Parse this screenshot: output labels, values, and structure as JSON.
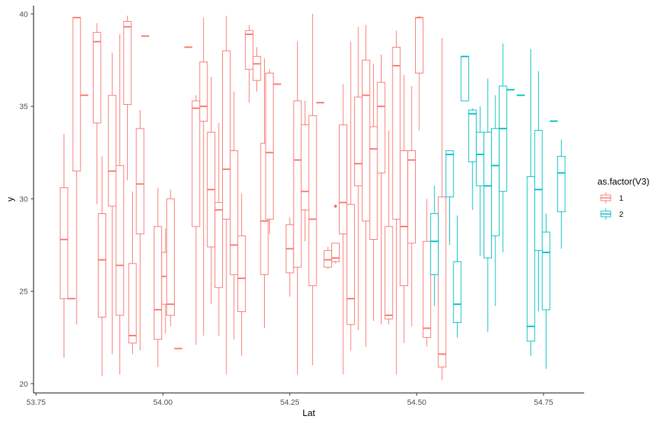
{
  "chart_data": {
    "type": "boxplot",
    "xlabel": "Lat",
    "ylabel": "y",
    "xlim": [
      53.745,
      54.83
    ],
    "ylim": [
      19.5,
      40.45
    ],
    "x_ticks": [
      53.75,
      54.0,
      54.25,
      54.5,
      54.75
    ],
    "x_tick_labels": [
      "53.75",
      "54.00",
      "54.25",
      "54.50",
      "54.75"
    ],
    "y_ticks": [
      20,
      25,
      30,
      35,
      40
    ],
    "y_tick_labels": [
      "20",
      "25",
      "30",
      "35",
      "40"
    ],
    "box_width": 0.015,
    "grid": false,
    "legend": {
      "title": "as.factor(V3)",
      "position": "right",
      "entries": [
        {
          "label": "1",
          "color": "#F8766D"
        },
        {
          "label": "2",
          "color": "#00BFC4"
        }
      ]
    },
    "series": [
      {
        "name": "1",
        "color": "#F8766D",
        "boxes": [
          {
            "x": 53.805,
            "min": 21.4,
            "q1": 24.6,
            "median": 27.8,
            "q3": 30.6,
            "max": 33.5
          },
          {
            "x": 53.82,
            "min": 24.6,
            "q1": 24.6,
            "median": 24.6,
            "q3": 24.6,
            "max": 24.6
          },
          {
            "x": 53.83,
            "min": 23.2,
            "q1": 31.5,
            "median": 39.8,
            "q3": 39.8,
            "max": 39.8
          },
          {
            "x": 53.845,
            "min": 35.6,
            "q1": 35.6,
            "median": 35.6,
            "q3": 35.6,
            "max": 35.6
          },
          {
            "x": 53.87,
            "min": 29.7,
            "q1": 34.1,
            "median": 38.5,
            "q3": 39.0,
            "max": 39.5
          },
          {
            "x": 53.88,
            "min": 20.4,
            "q1": 23.6,
            "median": 26.7,
            "q3": 29.2,
            "max": 32.3
          },
          {
            "x": 53.9,
            "min": 21.6,
            "q1": 29.6,
            "median": 31.5,
            "q3": 35.6,
            "max": 37.9
          },
          {
            "x": 53.915,
            "min": 20.5,
            "q1": 23.7,
            "median": 26.4,
            "q3": 31.8,
            "max": 38.9
          },
          {
            "x": 53.93,
            "min": 31.0,
            "q1": 35.1,
            "median": 39.3,
            "q3": 39.6,
            "max": 39.9
          },
          {
            "x": 53.94,
            "min": 21.6,
            "q1": 22.2,
            "median": 22.6,
            "q3": 26.5,
            "max": 30.4
          },
          {
            "x": 53.955,
            "min": 21.8,
            "q1": 28.1,
            "median": 30.8,
            "q3": 33.8,
            "max": 34.8
          },
          {
            "x": 53.965,
            "min": 38.8,
            "q1": 38.8,
            "median": 38.8,
            "q3": 38.8,
            "max": 38.8
          },
          {
            "x": 53.99,
            "min": 20.9,
            "q1": 22.4,
            "median": 24.0,
            "q3": 28.5,
            "max": 30.6
          },
          {
            "x": 54.005,
            "min": 22.7,
            "q1": 24.3,
            "median": 25.8,
            "q3": 27.1,
            "max": 28.4
          },
          {
            "x": 54.015,
            "min": 23.1,
            "q1": 23.7,
            "median": 24.3,
            "q3": 30.0,
            "max": 30.5
          },
          {
            "x": 54.03,
            "min": 21.9,
            "q1": 21.9,
            "median": 21.9,
            "q3": 21.9,
            "max": 21.9
          },
          {
            "x": 54.05,
            "min": 38.2,
            "q1": 38.2,
            "median": 38.2,
            "q3": 38.2,
            "max": 38.2
          },
          {
            "x": 54.065,
            "min": 22.1,
            "q1": 28.5,
            "median": 34.9,
            "q3": 35.3,
            "max": 35.6
          },
          {
            "x": 54.08,
            "min": 22.6,
            "q1": 34.2,
            "median": 35.0,
            "q3": 37.4,
            "max": 39.8
          },
          {
            "x": 54.095,
            "min": 24.3,
            "q1": 27.4,
            "median": 30.5,
            "q3": 33.6,
            "max": 36.6
          },
          {
            "x": 54.11,
            "min": 22.6,
            "q1": 25.2,
            "median": 29.4,
            "q3": 29.8,
            "max": 34.1
          },
          {
            "x": 54.125,
            "min": 20.5,
            "q1": 28.9,
            "median": 31.6,
            "q3": 38.0,
            "max": 39.9
          },
          {
            "x": 54.14,
            "min": 22.4,
            "q1": 25.9,
            "median": 27.5,
            "q3": 32.6,
            "max": 35.8
          },
          {
            "x": 54.155,
            "min": 21.5,
            "q1": 23.9,
            "median": 25.7,
            "q3": 28.0,
            "max": 30.3
          },
          {
            "x": 54.17,
            "min": 35.2,
            "q1": 37.0,
            "median": 38.9,
            "q3": 39.1,
            "max": 39.4
          },
          {
            "x": 54.185,
            "min": 35.8,
            "q1": 36.4,
            "median": 37.3,
            "q3": 37.7,
            "max": 38.2
          },
          {
            "x": 54.2,
            "min": 23.0,
            "q1": 25.9,
            "median": 28.8,
            "q3": 33.0,
            "max": 37.6
          },
          {
            "x": 54.21,
            "min": 28.1,
            "q1": 28.9,
            "median": 32.5,
            "q3": 36.8,
            "max": 37.0
          },
          {
            "x": 54.225,
            "min": 36.2,
            "q1": 36.2,
            "median": 36.2,
            "q3": 36.2,
            "max": 36.2
          },
          {
            "x": 54.25,
            "min": 24.7,
            "q1": 26.0,
            "median": 27.3,
            "q3": 28.6,
            "max": 29.0
          },
          {
            "x": 54.265,
            "min": 20.5,
            "q1": 26.3,
            "median": 32.1,
            "q3": 35.3,
            "max": 38.5
          },
          {
            "x": 54.28,
            "min": 27.7,
            "q1": 29.4,
            "median": 30.4,
            "q3": 34.0,
            "max": 35.3
          },
          {
            "x": 54.295,
            "min": 21.0,
            "q1": 25.3,
            "median": 28.9,
            "q3": 34.5,
            "max": 40.0
          },
          {
            "x": 54.31,
            "min": 35.2,
            "q1": 35.2,
            "median": 35.2,
            "q3": 35.2,
            "max": 35.2
          },
          {
            "x": 54.325,
            "min": 26.2,
            "q1": 26.3,
            "median": 26.7,
            "q3": 27.2,
            "max": 27.4
          },
          {
            "x": 54.34,
            "min": 26.5,
            "q1": 26.6,
            "median": 26.8,
            "q3": 27.6,
            "max": 27.6,
            "outliers": [
              29.6
            ]
          },
          {
            "x": 54.355,
            "min": 20.5,
            "q1": 28.1,
            "median": 29.8,
            "q3": 34.0,
            "max": 36.2
          },
          {
            "x": 54.37,
            "min": 21.8,
            "q1": 23.2,
            "median": 24.6,
            "q3": 29.7,
            "max": 38.5
          },
          {
            "x": 54.385,
            "min": 22.9,
            "q1": 30.7,
            "median": 31.9,
            "q3": 35.5,
            "max": 39.3
          },
          {
            "x": 54.4,
            "min": 22.0,
            "q1": 28.8,
            "median": 35.6,
            "q3": 37.5,
            "max": 39.4
          },
          {
            "x": 54.415,
            "min": 23.4,
            "q1": 27.8,
            "median": 32.7,
            "q3": 33.9,
            "max": 37.3
          },
          {
            "x": 54.43,
            "min": 23.2,
            "q1": 31.4,
            "median": 35.0,
            "q3": 36.3,
            "max": 37.8
          },
          {
            "x": 54.445,
            "min": 23.2,
            "q1": 23.5,
            "median": 23.7,
            "q3": 28.5,
            "max": 33.7
          },
          {
            "x": 54.46,
            "min": 20.5,
            "q1": 28.9,
            "median": 37.2,
            "q3": 38.2,
            "max": 39.1
          },
          {
            "x": 54.475,
            "min": 22.2,
            "q1": 25.3,
            "median": 28.5,
            "q3": 32.6,
            "max": 36.7
          },
          {
            "x": 54.49,
            "min": 23.1,
            "q1": 27.6,
            "median": 32.1,
            "q3": 32.6,
            "max": 36.1
          },
          {
            "x": 54.505,
            "min": 33.7,
            "q1": 36.8,
            "median": 39.8,
            "q3": 39.8,
            "max": 39.9
          },
          {
            "x": 54.52,
            "min": 22.0,
            "q1": 22.5,
            "median": 23.0,
            "q3": 27.7,
            "max": 30.0
          },
          {
            "x": 54.55,
            "min": 20.2,
            "q1": 20.9,
            "median": 21.6,
            "q3": 30.1,
            "max": 38.7
          }
        ]
      },
      {
        "name": "2",
        "color": "#00BFC4",
        "boxes": [
          {
            "x": 54.535,
            "min": 24.2,
            "q1": 25.9,
            "median": 27.7,
            "q3": 29.2,
            "max": 30.7
          },
          {
            "x": 54.565,
            "min": 27.5,
            "q1": 30.1,
            "median": 32.4,
            "q3": 32.6,
            "max": 32.6
          },
          {
            "x": 54.58,
            "min": 22.5,
            "q1": 23.3,
            "median": 24.3,
            "q3": 26.6,
            "max": 29.1
          },
          {
            "x": 54.595,
            "min": 35.3,
            "q1": 35.3,
            "median": 37.7,
            "q3": 37.7,
            "max": 37.7
          },
          {
            "x": 54.61,
            "min": 29.4,
            "q1": 32.0,
            "median": 34.6,
            "q3": 34.8,
            "max": 34.9
          },
          {
            "x": 54.625,
            "min": 26.9,
            "q1": 30.7,
            "median": 32.4,
            "q3": 33.6,
            "max": 35.0
          },
          {
            "x": 54.64,
            "min": 22.8,
            "q1": 26.8,
            "median": 30.7,
            "q3": 33.6,
            "max": 36.5
          },
          {
            "x": 54.655,
            "min": 24.2,
            "q1": 28.0,
            "median": 31.8,
            "q3": 33.8,
            "max": 35.6
          },
          {
            "x": 54.67,
            "min": 27.1,
            "q1": 30.4,
            "median": 33.8,
            "q3": 36.1,
            "max": 38.4
          },
          {
            "x": 54.685,
            "min": 35.9,
            "q1": 35.9,
            "median": 35.9,
            "q3": 35.9,
            "max": 35.9
          },
          {
            "x": 54.705,
            "min": 35.6,
            "q1": 35.6,
            "median": 35.6,
            "q3": 35.6,
            "max": 35.6
          },
          {
            "x": 54.725,
            "min": 21.5,
            "q1": 22.3,
            "median": 23.1,
            "q3": 31.2,
            "max": 38.1
          },
          {
            "x": 54.74,
            "min": 23.9,
            "q1": 27.2,
            "median": 30.5,
            "q3": 33.7,
            "max": 36.9
          },
          {
            "x": 54.755,
            "min": 20.8,
            "q1": 24.0,
            "median": 27.1,
            "q3": 28.2,
            "max": 29.2
          },
          {
            "x": 54.77,
            "min": 34.2,
            "q1": 34.2,
            "median": 34.2,
            "q3": 34.2,
            "max": 34.2
          },
          {
            "x": 54.785,
            "min": 27.3,
            "q1": 29.3,
            "median": 31.4,
            "q3": 32.3,
            "max": 33.2
          }
        ]
      }
    ]
  }
}
